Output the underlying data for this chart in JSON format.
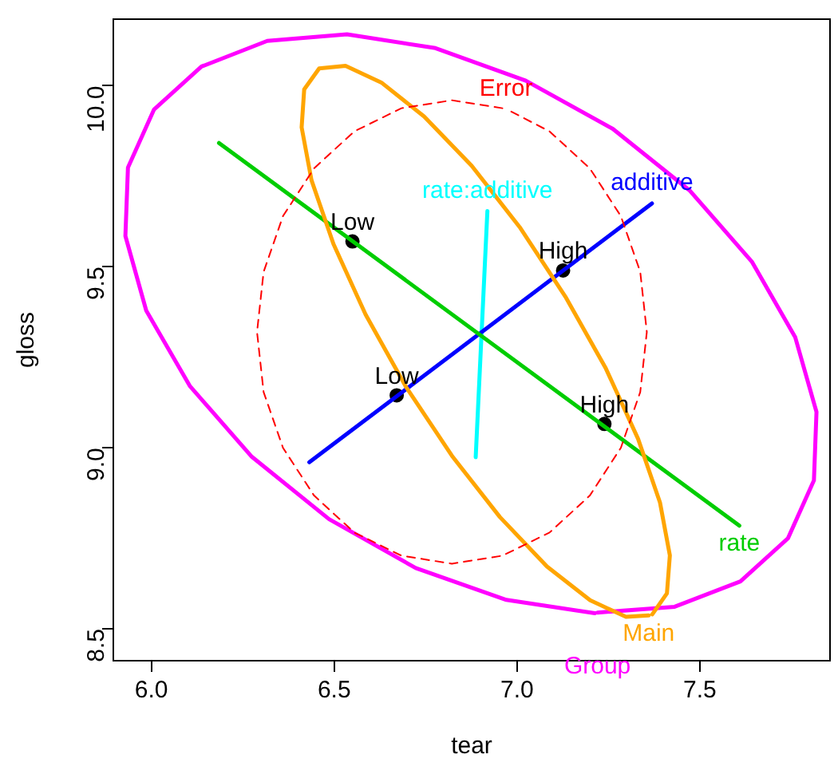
{
  "chart_data": {
    "type": "line",
    "xlabel": "tear",
    "ylabel": "gloss",
    "xlim": [
      5.896,
      7.856
    ],
    "ylim": [
      8.412,
      10.184
    ],
    "xticks": [
      {
        "value": 6,
        "label": "6.0"
      },
      {
        "value": 6.5,
        "label": "6.5"
      },
      {
        "value": 7,
        "label": "7.0"
      },
      {
        "value": 7.5,
        "label": "7.5"
      }
    ],
    "yticks": [
      {
        "value": 8.5,
        "label": "8.5"
      },
      {
        "value": 9,
        "label": "9.0"
      },
      {
        "value": 9.5,
        "label": "9.5"
      },
      {
        "value": 10,
        "label": "10.0"
      }
    ],
    "grid": false,
    "legend": false,
    "series": [
      {
        "name": "Error",
        "line_style": "dashed",
        "color": "#ff0000",
        "x": [
          6.96,
          6.822,
          6.684,
          6.555,
          6.445,
          6.36,
          6.307,
          6.289,
          6.307,
          6.36,
          6.445,
          6.555,
          6.684,
          6.822,
          6.96,
          7.089,
          7.199,
          7.284,
          7.337,
          7.355,
          7.337,
          7.284,
          7.199,
          7.089,
          6.97
        ],
        "values": [
          9.938,
          9.96,
          9.938,
          9.874,
          9.772,
          9.64,
          9.486,
          9.32,
          9.154,
          9.0,
          8.868,
          8.766,
          8.702,
          8.68,
          8.702,
          8.766,
          8.868,
          9.0,
          9.154,
          9.32,
          9.486,
          9.64,
          9.772,
          9.874,
          9.936
        ]
      },
      {
        "name": "Main",
        "color": "#ffa500",
        "x": [
          7.37,
          7.41,
          7.418,
          7.391,
          7.331,
          7.243,
          7.132,
          7.007,
          6.876,
          6.746,
          6.629,
          6.531,
          6.459,
          6.418,
          6.411,
          6.438,
          6.498,
          6.586,
          6.696,
          6.822,
          6.953,
          7.082,
          7.2,
          7.298,
          7.36
        ],
        "values": [
          8.54,
          8.598,
          8.703,
          8.849,
          9.025,
          9.219,
          9.418,
          9.61,
          9.779,
          9.915,
          10.009,
          10.055,
          10.048,
          9.99,
          9.885,
          9.739,
          9.563,
          9.368,
          9.169,
          8.978,
          8.809,
          8.672,
          8.579,
          8.533,
          8.537
        ]
      },
      {
        "name": "Group",
        "color": "#ff00ff",
        "x": [
          7.213,
          6.971,
          6.723,
          6.486,
          6.275,
          6.105,
          5.986,
          5.929,
          5.936,
          6.007,
          6.137,
          6.317,
          6.535,
          6.777,
          7.024,
          7.262,
          7.473,
          7.643,
          7.761,
          7.819,
          7.812,
          7.741,
          7.611,
          7.431,
          7.22
        ],
        "values": [
          8.543,
          8.58,
          8.668,
          8.803,
          8.975,
          9.171,
          9.379,
          9.585,
          9.774,
          9.934,
          10.053,
          10.124,
          10.142,
          10.104,
          10.014,
          9.881,
          9.71,
          9.513,
          9.305,
          9.099,
          8.91,
          8.75,
          8.631,
          8.561,
          8.545
        ]
      },
      {
        "name": "rate",
        "color": "#00cd00",
        "x": [
          6.185,
          7.608
        ],
        "values": [
          9.842,
          8.785
        ]
      },
      {
        "name": "additive",
        "color": "#0000ff",
        "x": [
          6.432,
          7.369
        ],
        "values": [
          8.96,
          9.675
        ]
      },
      {
        "name": "rate:additive",
        "color": "#00ffff",
        "x": [
          6.887,
          6.919
        ],
        "values": [
          8.974,
          9.654
        ]
      },
      {
        "type": "scatter",
        "marker": "circle",
        "color": "#000000",
        "x": [
          6.55,
          7.126,
          6.671,
          7.239
        ],
        "values": [
          9.57,
          9.49,
          9.145,
          9.066
        ]
      }
    ],
    "annotations": [
      {
        "text": "Low",
        "x": 6.55,
        "y": 9.57
      },
      {
        "text": "High",
        "x": 7.126,
        "y": 9.49
      },
      {
        "text": "Low",
        "x": 6.671,
        "y": 9.145
      },
      {
        "text": "High",
        "x": 7.239,
        "y": 9.066
      }
    ]
  }
}
